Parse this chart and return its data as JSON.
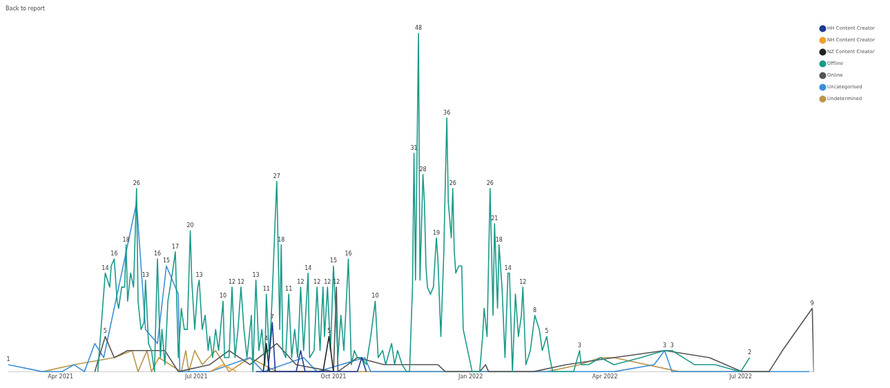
{
  "chart_data": {
    "type": "line",
    "annotations": [
      "Back to report"
    ],
    "xlim": [
      "2021-02-25",
      "2022-08-19"
    ],
    "xticks": [
      {
        "value": "2021-04-01",
        "label": "Apr 2021"
      },
      {
        "value": "2021-07-01",
        "label": "Jul 2021"
      },
      {
        "value": "2021-10-01",
        "label": "Oct 2021"
      },
      {
        "value": "2022-01-01",
        "label": "Jan 2022"
      },
      {
        "value": "2022-04-01",
        "label": "Apr 2022"
      },
      {
        "value": "2022-07-01",
        "label": "Jul 2022"
      }
    ],
    "tick_labels": "x",
    "grid": false,
    "legend": "top right",
    "marker": "none",
    "line_style": "solid",
    "series": [
      {
        "name": "HH Content Creator",
        "color": "#1f3a93",
        "x": [
          "2021-08-10",
          "2021-08-18",
          "2021-08-21",
          "2021-08-23",
          "2021-09-06",
          "2021-09-09",
          "2021-09-12",
          "2021-10-17",
          "2021-10-20",
          "2021-10-23"
        ],
        "values": [
          0,
          0,
          7,
          0,
          0,
          3,
          0,
          0,
          2,
          0
        ],
        "value_labels": [
          null,
          null,
          "7",
          null,
          null,
          null,
          null,
          null,
          null,
          null
        ]
      },
      {
        "name": "NH Content Creator",
        "color": "#f0a030",
        "x": [
          "2021-07-10",
          "2021-07-19",
          "2021-07-28"
        ],
        "values": [
          0,
          1,
          0
        ]
      },
      {
        "name": "NZ Content Creator",
        "color": "#222222",
        "x": [
          "2021-08-15",
          "2021-08-17",
          "2021-08-19",
          "2021-09-24",
          "2021-09-28",
          "2021-10-01"
        ],
        "values": [
          0,
          4,
          0,
          0,
          5,
          0
        ],
        "value_labels": [
          null,
          "4",
          null,
          null,
          "5",
          null
        ]
      },
      {
        "name": "Offline",
        "color": "#1a9a8a",
        "x": [
          "2021-04-26",
          "2021-05-01",
          "2021-05-04",
          "2021-05-05",
          "2021-05-07",
          "2021-05-09",
          "2021-05-10",
          "2021-05-12",
          "2021-05-14",
          "2021-05-15",
          "2021-05-16",
          "2021-05-18",
          "2021-05-20",
          "2021-05-22",
          "2021-05-23",
          "2021-05-25",
          "2021-05-27",
          "2021-05-28",
          "2021-05-30",
          "2021-06-01",
          "2021-06-03",
          "2021-06-05",
          "2021-06-07",
          "2021-06-08",
          "2021-06-10",
          "2021-06-12",
          "2021-06-15",
          "2021-06-17",
          "2021-06-19",
          "2021-06-21",
          "2021-06-23",
          "2021-06-25",
          "2021-06-27",
          "2021-06-28",
          "2021-06-30",
          "2021-07-02",
          "2021-07-03",
          "2021-07-05",
          "2021-07-07",
          "2021-07-09",
          "2021-07-10",
          "2021-07-12",
          "2021-07-14",
          "2021-07-16",
          "2021-07-19",
          "2021-07-20",
          "2021-07-23",
          "2021-07-25",
          "2021-07-27",
          "2021-07-29",
          "2021-07-31",
          "2021-08-02",
          "2021-08-04",
          "2021-08-07",
          "2021-08-08",
          "2021-08-10",
          "2021-08-12",
          "2021-08-14",
          "2021-08-16",
          "2021-08-17",
          "2021-08-19",
          "2021-08-21",
          "2021-08-23",
          "2021-08-24",
          "2021-08-26",
          "2021-08-27",
          "2021-08-28",
          "2021-08-30",
          "2021-09-01",
          "2021-09-03",
          "2021-09-05",
          "2021-09-07",
          "2021-09-09",
          "2021-09-11",
          "2021-09-14",
          "2021-09-15",
          "2021-09-18",
          "2021-09-20",
          "2021-09-22",
          "2021-09-24",
          "2021-09-25",
          "2021-09-27",
          "2021-09-29",
          "2021-10-01",
          "2021-10-04",
          "2021-10-06",
          "2021-10-08",
          "2021-10-11",
          "2021-10-13",
          "2021-10-15",
          "2021-10-17",
          "2021-10-20",
          "2021-10-23",
          "2021-10-26",
          "2021-10-29",
          "2021-10-31",
          "2021-11-03",
          "2021-11-05",
          "2021-11-09",
          "2021-11-11",
          "2021-11-13",
          "2021-11-16",
          "2021-11-19",
          "2021-11-21",
          "2021-11-23",
          "2021-11-24",
          "2021-11-25",
          "2021-11-27",
          "2021-11-28",
          "2021-11-30",
          "2021-12-01",
          "2021-12-02",
          "2021-12-03",
          "2021-12-05",
          "2021-12-07",
          "2021-12-09",
          "2021-12-10",
          "2021-12-12",
          "2021-12-14",
          "2021-12-15",
          "2021-12-16",
          "2021-12-17",
          "2021-12-19",
          "2021-12-20",
          "2021-12-21",
          "2021-12-22",
          "2021-12-24",
          "2021-12-26",
          "2021-12-27",
          "2022-01-02",
          "2022-01-07",
          "2022-01-09",
          "2022-01-10",
          "2022-01-12",
          "2022-01-14",
          "2022-01-16",
          "2022-01-17",
          "2022-01-19",
          "2022-01-20",
          "2022-01-22",
          "2022-01-24",
          "2022-01-26",
          "2022-01-27",
          "2022-01-29",
          "2022-01-31",
          "2022-02-02",
          "2022-02-04",
          "2022-02-05",
          "2022-02-07",
          "2022-02-10",
          "2022-02-13",
          "2022-02-16",
          "2022-02-18",
          "2022-02-21",
          "2022-02-23",
          "2022-02-25",
          "2022-03-01",
          "2022-03-06",
          "2022-03-11",
          "2022-03-15",
          "2022-03-16",
          "2022-03-21",
          "2022-03-29",
          "2022-04-07",
          "2022-04-25",
          "2022-05-11",
          "2022-05-16",
          "2022-05-31",
          "2022-06-14",
          "2022-07-01",
          "2022-07-07"
        ],
        "values": [
          0,
          14,
          12,
          15,
          16,
          10,
          9,
          12,
          12,
          18,
          10,
          14,
          12,
          26,
          10,
          6,
          7,
          13,
          4,
          3,
          0,
          16,
          2,
          6,
          1,
          10,
          14,
          17,
          2,
          9,
          6,
          6,
          20,
          13,
          6,
          12,
          13,
          6,
          8,
          3,
          5,
          2,
          6,
          3,
          10,
          2,
          2,
          12,
          2,
          6,
          12,
          6,
          2,
          8,
          0,
          13,
          3,
          6,
          1,
          11,
          2,
          11,
          22,
          27,
          6,
          18,
          3,
          2,
          11,
          2,
          6,
          2,
          12,
          3,
          14,
          2,
          3,
          12,
          3,
          12,
          5,
          12,
          3,
          15,
          2,
          8,
          3,
          16,
          1,
          3,
          2,
          2,
          1,
          5,
          10,
          2,
          3,
          1,
          4,
          1,
          3,
          1,
          0,
          0,
          12,
          31,
          13,
          48,
          13,
          28,
          24,
          15,
          12,
          11,
          12,
          19,
          16,
          5,
          17,
          27,
          36,
          24,
          19,
          26,
          17,
          14,
          15,
          15,
          6,
          0,
          0,
          5,
          9,
          5,
          26,
          8,
          21,
          9,
          18,
          12,
          2,
          14,
          14,
          0,
          11,
          5,
          8,
          12,
          1,
          3,
          8,
          6,
          3,
          5,
          2,
          0,
          0,
          0,
          0,
          3,
          1,
          1,
          2,
          1,
          2,
          3,
          3,
          1,
          1,
          0,
          2
        ],
        "value_labels": [
          null,
          "14",
          null,
          null,
          "16",
          null,
          null,
          null,
          null,
          "18",
          null,
          null,
          null,
          "26",
          null,
          null,
          null,
          "13",
          null,
          null,
          null,
          "16",
          null,
          null,
          null,
          null,
          null,
          "17",
          null,
          null,
          null,
          null,
          "20",
          null,
          null,
          null,
          "13",
          null,
          null,
          null,
          null,
          null,
          null,
          null,
          "10",
          null,
          null,
          "12",
          null,
          null,
          "12",
          null,
          null,
          null,
          null,
          "13",
          null,
          null,
          null,
          "11",
          null,
          null,
          null,
          "27",
          null,
          "18",
          null,
          null,
          "11",
          null,
          null,
          null,
          "12",
          null,
          "14",
          null,
          null,
          "12",
          null,
          null,
          null,
          "12",
          null,
          "15",
          null,
          null,
          null,
          "16",
          null,
          null,
          null,
          null,
          null,
          null,
          "10",
          null,
          null,
          null,
          null,
          null,
          null,
          null,
          null,
          null,
          null,
          "31",
          null,
          "48",
          null,
          "28",
          null,
          null,
          null,
          null,
          null,
          "19",
          null,
          null,
          null,
          null,
          "36",
          null,
          null,
          "26",
          null,
          null,
          null,
          null,
          null,
          null,
          null,
          null,
          null,
          null,
          "26",
          null,
          "21",
          null,
          "18",
          null,
          null,
          "14",
          null,
          null,
          null,
          null,
          null,
          "12",
          null,
          null,
          "8",
          null,
          null,
          "5",
          null,
          null,
          null,
          null,
          null,
          "3",
          null,
          null,
          null,
          null,
          null,
          null,
          "3",
          null,
          null,
          null,
          "2"
        ]
      },
      {
        "name": "Online",
        "color": "#555555",
        "x": [
          "2021-04-24",
          "2021-05-01",
          "2021-05-07",
          "2021-05-16",
          "2021-05-28",
          "2021-06-10",
          "2021-06-19",
          "2021-07-10",
          "2021-07-23",
          "2021-08-06",
          "2021-08-24",
          "2021-09-06",
          "2021-10-01",
          "2021-10-03",
          "2021-10-04",
          "2021-10-17",
          "2021-11-04",
          "2021-11-21",
          "2021-12-10",
          "2021-12-15",
          "2022-01-07",
          "2022-01-11",
          "2022-01-13",
          "2022-02-12",
          "2022-03-06",
          "2022-04-07",
          "2022-05-11",
          "2022-06-10",
          "2022-07-02",
          "2022-07-20",
          "2022-07-29",
          "2022-08-18",
          "2022-08-19"
        ],
        "values": [
          0,
          5,
          2,
          3,
          3,
          3,
          0,
          1,
          3,
          1,
          4,
          1,
          0,
          12,
          0,
          2,
          1,
          1,
          1,
          0,
          0,
          1,
          0,
          0,
          1,
          2,
          3,
          2,
          0,
          0,
          3,
          9,
          0
        ],
        "value_labels": [
          null,
          "5",
          null,
          null,
          null,
          null,
          null,
          null,
          null,
          null,
          null,
          null,
          null,
          "12",
          null,
          null,
          null,
          null,
          null,
          null,
          null,
          null,
          null,
          null,
          null,
          null,
          "3",
          null,
          null,
          null,
          null,
          "9",
          null
        ]
      },
      {
        "name": "Uncategorised",
        "color": "#3b8fd8",
        "x": [
          "2021-02-25",
          "2021-03-20",
          "2021-04-02",
          "2021-04-10",
          "2021-04-17",
          "2021-04-24",
          "2021-04-30",
          "2021-05-22",
          "2021-05-28",
          "2021-06-05",
          "2021-06-11",
          "2021-06-19",
          "2021-06-20",
          "2021-07-10",
          "2021-08-06",
          "2021-08-15",
          "2021-09-11",
          "2021-09-20",
          "2021-10-22",
          "2021-10-26",
          "2021-11-21",
          "2022-01-07",
          "2022-04-07",
          "2022-05-04",
          "2022-05-11",
          "2022-05-16",
          "2022-08-16"
        ],
        "values": [
          1,
          0,
          0,
          1,
          0,
          4,
          2,
          24,
          6,
          4,
          15,
          11,
          0,
          0,
          2,
          0,
          2,
          0,
          2,
          0,
          0,
          0,
          0,
          1,
          3,
          0,
          0
        ],
        "value_labels": [
          "1",
          null,
          null,
          null,
          null,
          null,
          null,
          null,
          null,
          null,
          "15",
          null,
          null,
          null,
          null,
          null,
          null,
          null,
          null,
          null,
          null,
          null,
          null,
          null,
          null,
          null,
          null
        ]
      },
      {
        "name": "Undetermined",
        "color": "#b8964a",
        "x": [
          "2021-03-20",
          "2021-04-10",
          "2021-05-07",
          "2021-05-19",
          "2021-05-23",
          "2021-05-29",
          "2021-06-01",
          "2021-06-06",
          "2021-06-21",
          "2021-06-24",
          "2021-06-26",
          "2021-06-30",
          "2021-07-05",
          "2021-07-14",
          "2021-07-23",
          "2021-08-06",
          "2021-08-24",
          "2021-09-11",
          "2022-01-07",
          "2022-02-21",
          "2022-03-15",
          "2022-03-29",
          "2022-04-07",
          "2022-05-21",
          "2022-07-20"
        ],
        "values": [
          0,
          1,
          2,
          3,
          0,
          3,
          0,
          2,
          0,
          3,
          0,
          3,
          1,
          3,
          0,
          2,
          0,
          0,
          0,
          0,
          1,
          2,
          2,
          0,
          0
        ]
      }
    ]
  }
}
